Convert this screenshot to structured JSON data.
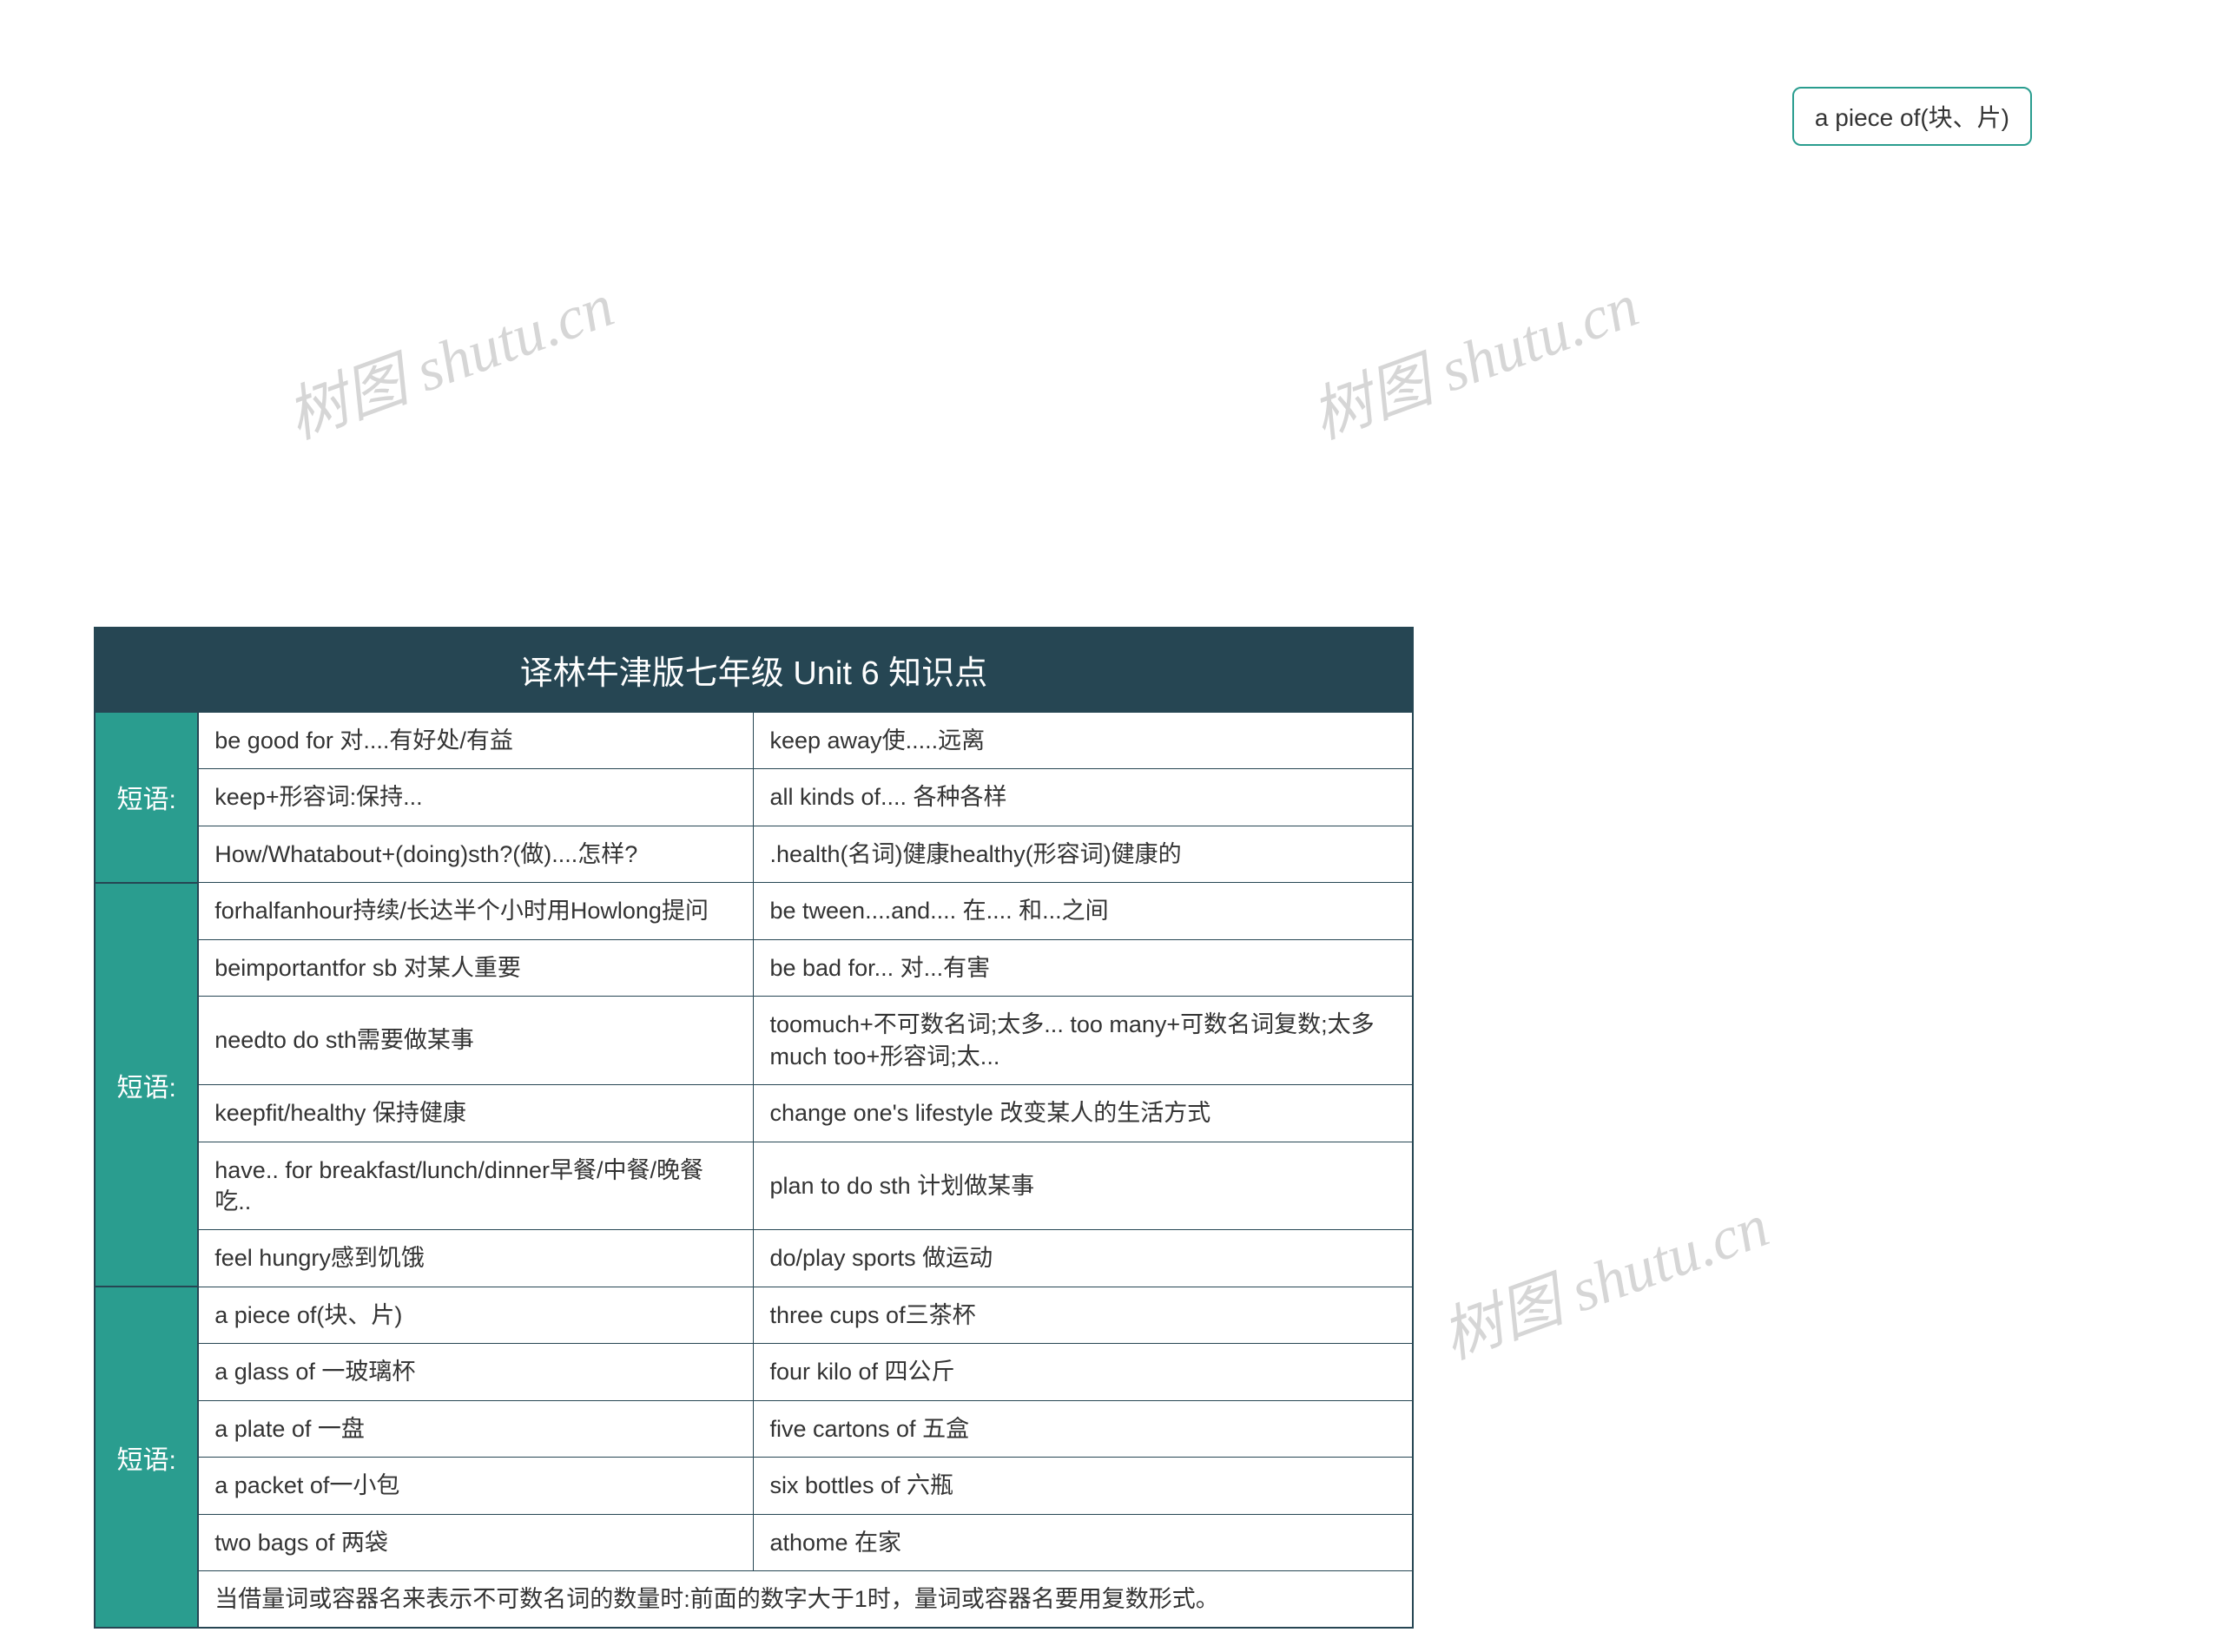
{
  "floating_box": "a piece of(块、片)",
  "watermark_text": "树图 shutu.cn",
  "table": {
    "title": "译林牛津版七年级 Unit 6 知识点",
    "sections": [
      {
        "label": "短语:",
        "rows": [
          [
            "be good for 对....有好处/有益",
            "keep away使.....远离"
          ],
          [
            "keep+形容词:保持...",
            " all kinds of.... 各种各样"
          ],
          [
            "How/Whatabout+(doing)sth?(做)....怎样?",
            ".health(名词)健康healthy(形容词)健康的"
          ]
        ]
      },
      {
        "label": "短语:",
        "rows": [
          [
            "forhalfanhour持续/长达半个小时用Howlong提问",
            "be tween....and.... 在.... 和...之间"
          ],
          [
            "beimportantfor sb 对某人重要",
            "be bad for... 对...有害"
          ],
          [
            "needto do sth需要做某事",
            "toomuch+不可数名词;太多... too many+可数名词复数;太多 much too+形容词;太..."
          ],
          [
            "keepfit/healthy 保持健康",
            "change one's lifestyle 改变某人的生活方式"
          ],
          [
            "have.. for breakfast/lunch/dinner早餐/中餐/晚餐吃..",
            "plan to do sth 计划做某事"
          ],
          [
            "feel hungry感到饥饿",
            "do/play sports 做运动"
          ]
        ]
      },
      {
        "label": "短语:",
        "rows": [
          [
            "a piece of(块、片)",
            "three cups of三茶杯"
          ],
          [
            "a glass of 一玻璃杯",
            "four kilo of 四公斤"
          ],
          [
            "a plate of 一盘",
            "five cartons of 五盒"
          ],
          [
            " a packet of一小包",
            "six bottles of 六瓶"
          ],
          [
            "two bags of 两袋",
            "athome 在家"
          ]
        ],
        "footer": "当借量词或容器名来表示不可数名词的数量时:前面的数字大于1时，量词或容器名要用复数形式。"
      }
    ]
  },
  "colors": {
    "header_bg": "#264653",
    "label_bg": "#2a9d8f",
    "text_light": "#ffffff",
    "text_dark": "#333333",
    "border": "#264653",
    "watermark": "#cccccc"
  }
}
